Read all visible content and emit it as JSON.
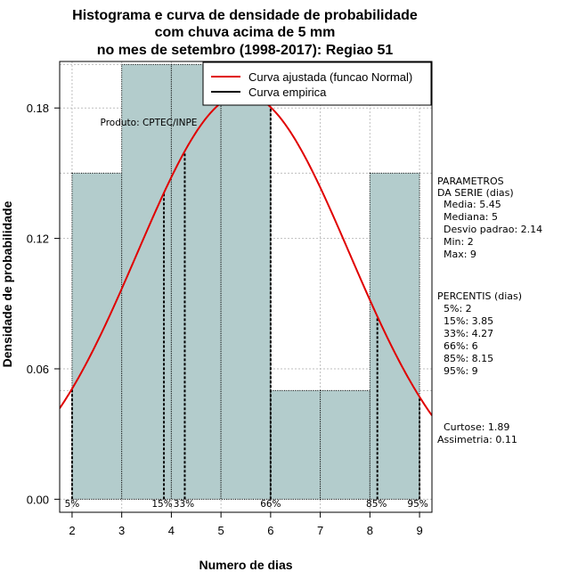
{
  "chart_data": {
    "type": "histogram",
    "title_lines": [
      "Histograma e curva de densidade de probabilidade",
      "com chuva acima de 5 mm",
      "no mes de setembro (1998-2017): Regiao 51"
    ],
    "xlabel": "Numero de dias",
    "ylabel": "Densidade de probabilidade",
    "xlim": [
      1.75,
      9.25
    ],
    "ylim": [
      -0.006,
      0.2014
    ],
    "x_ticks": [
      "2",
      "3",
      "4",
      "5",
      "6",
      "7",
      "8",
      "9"
    ],
    "y_ticks": [
      "0.00",
      "0.06",
      "0.12",
      "0.18"
    ],
    "grid": true,
    "bins": [
      {
        "from": 2,
        "to": 3,
        "density": 0.15
      },
      {
        "from": 3,
        "to": 4,
        "density": 0.2
      },
      {
        "from": 4,
        "to": 5,
        "density": 0.2
      },
      {
        "from": 5,
        "to": 6,
        "density": 0.2
      },
      {
        "from": 6,
        "to": 7,
        "density": 0.05
      },
      {
        "from": 7,
        "to": 8,
        "density": 0.05
      },
      {
        "from": 8,
        "to": 9,
        "density": 0.15
      }
    ],
    "fitted_curve": {
      "distribution": "normal",
      "mean": 5.45,
      "sd": 2.14
    },
    "percentile_lines": [
      {
        "label": "5%",
        "x": 2
      },
      {
        "label": "15%",
        "x": 3.85
      },
      {
        "label": "33%",
        "x": 4.27
      },
      {
        "label": "66%",
        "x": 6
      },
      {
        "label": "85%",
        "x": 8.15
      },
      {
        "label": "95%",
        "x": 9
      }
    ],
    "legend": {
      "position": "top-right",
      "entries": [
        {
          "label": "Curva ajustada (funcao Normal)",
          "color": "#e00000"
        },
        {
          "label": "Curva empirica",
          "color": "#000000"
        }
      ]
    },
    "annotation": "Produto: CPTEC/INPE",
    "colors": {
      "bar_fill": "#b3cccc",
      "curve": "#e00000",
      "grid": "#bfbfbf"
    }
  },
  "side_panel": {
    "parametros": [
      "PARAMETROS",
      "DA SERIE (dias)",
      "  Media: 5.45",
      "  Mediana: 5",
      "  Desvio padrao: 2.14",
      "  Min: 2",
      "  Max: 9"
    ],
    "percentis": [
      "PERCENTIS (dias)",
      "  5%: 2",
      "  15%: 3.85",
      "  33%: 4.27",
      "  66%: 6",
      "  85%: 8.15",
      "  95%: 9"
    ],
    "stats": [
      "  Curtose: 1.89",
      "Assimetria: 0.11"
    ]
  }
}
